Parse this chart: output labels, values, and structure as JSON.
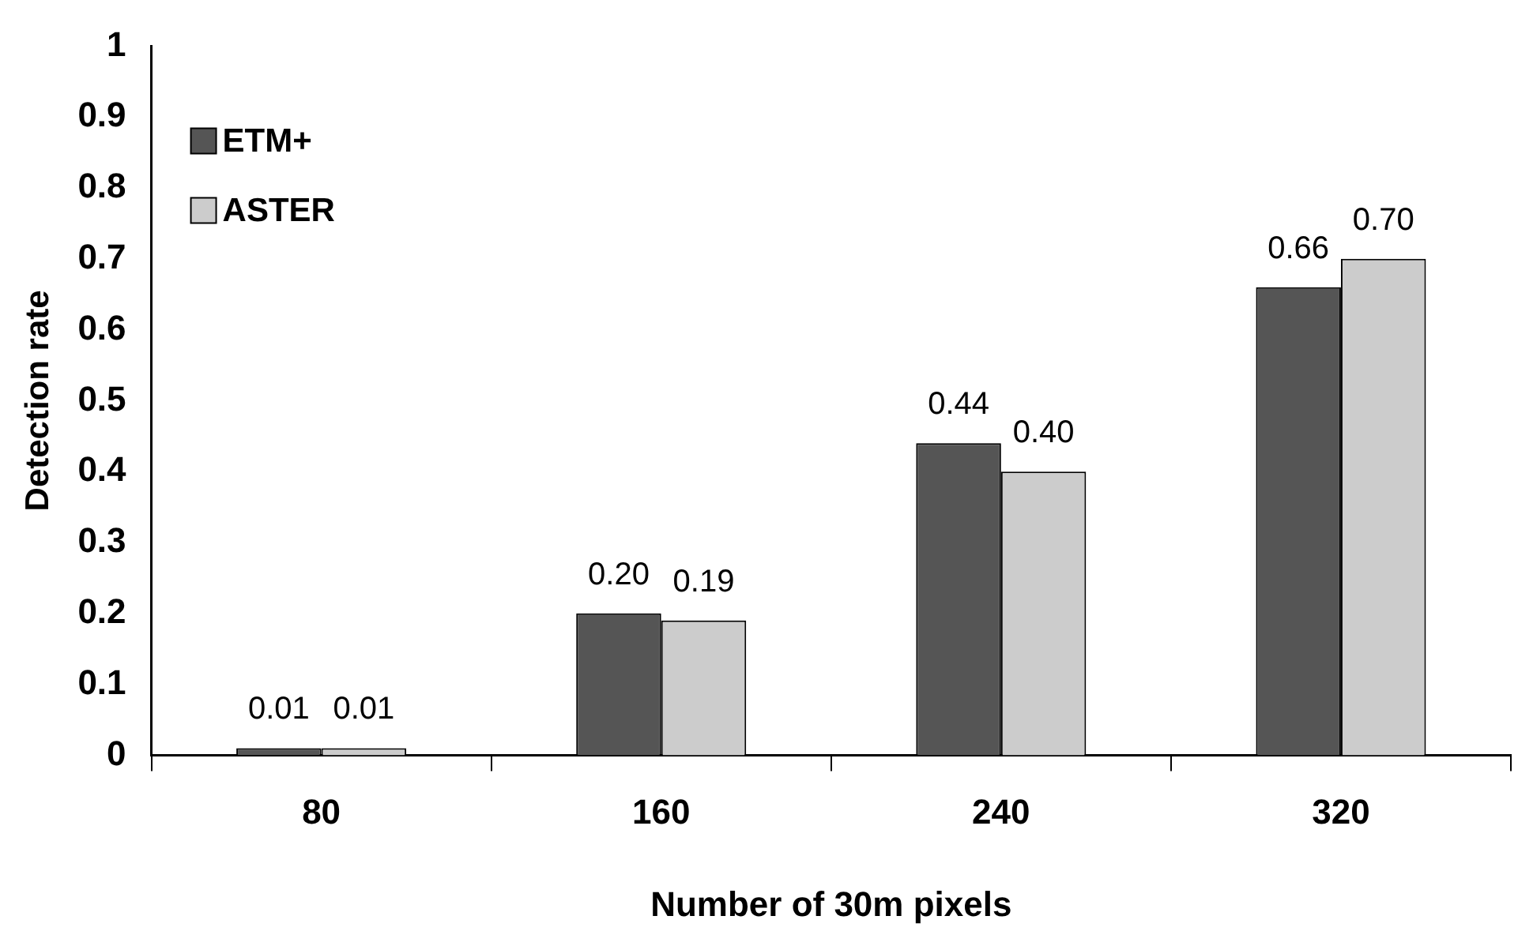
{
  "chart_data": {
    "type": "bar",
    "xlabel": "Number of 30m pixels",
    "ylabel": "Detection rate",
    "categories": [
      "80",
      "160",
      "240",
      "320"
    ],
    "series": [
      {
        "name": "ETM+",
        "color": "#555555",
        "values": [
          0.01,
          0.2,
          0.44,
          0.66
        ],
        "value_labels": [
          "0.01",
          "0.20",
          "0.44",
          "0.66"
        ]
      },
      {
        "name": "ASTER",
        "color": "#cccccc",
        "values": [
          0.01,
          0.19,
          0.4,
          0.7
        ],
        "value_labels": [
          "0.01",
          "0.19",
          "0.40",
          "0.70"
        ]
      }
    ],
    "ylim": [
      0,
      1
    ],
    "yticks": [
      0,
      0.1,
      0.2,
      0.3,
      0.4,
      0.5,
      0.6,
      0.7,
      0.8,
      0.9,
      1
    ],
    "grid": false,
    "legend": "top left"
  }
}
